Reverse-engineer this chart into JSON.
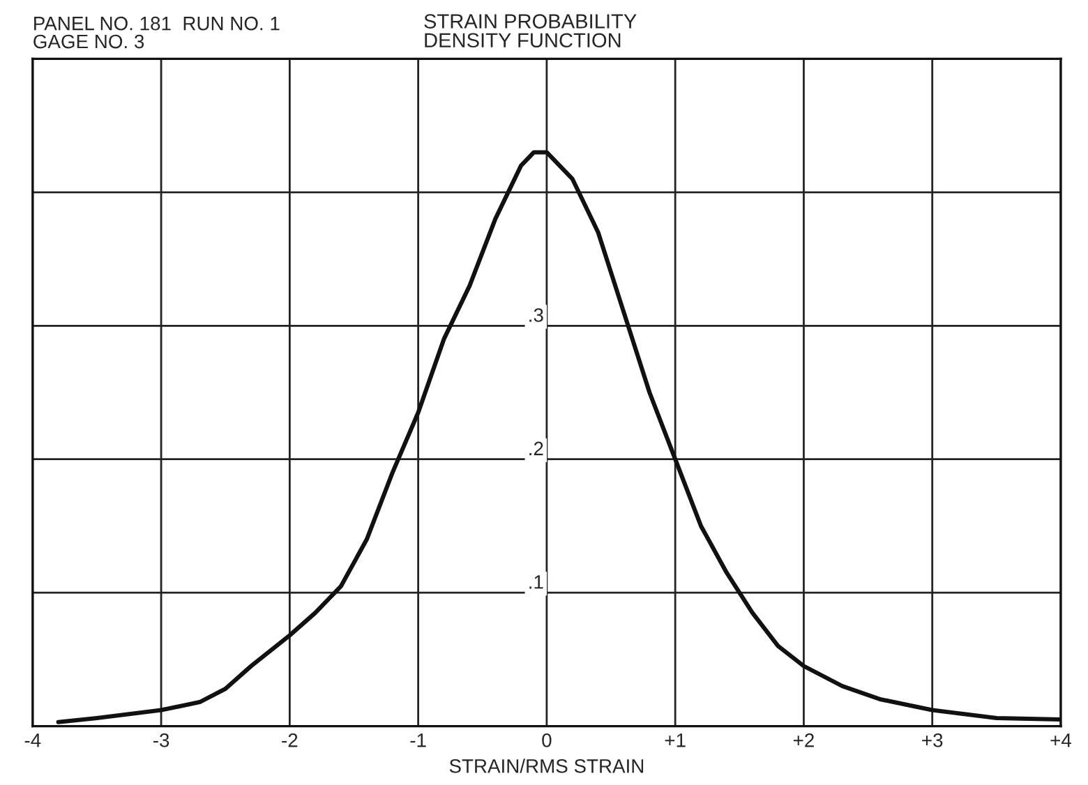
{
  "chart_data": {
    "type": "line",
    "title": "STRAIN PROBABILITY\nDENSITY FUNCTION",
    "xlabel": "STRAIN/RMS STRAIN",
    "annotations": [
      "PANEL NO. 181  RUN NO. 1\nGAGE NO. 3"
    ],
    "x": [
      -3.8,
      -3.5,
      -3.0,
      -2.7,
      -2.5,
      -2.3,
      -2.0,
      -1.8,
      -1.6,
      -1.4,
      -1.2,
      -1.0,
      -0.8,
      -0.6,
      -0.4,
      -0.2,
      -0.1,
      0.0,
      0.2,
      0.4,
      0.6,
      0.8,
      1.0,
      1.2,
      1.4,
      1.6,
      1.8,
      2.0,
      2.3,
      2.6,
      3.0,
      3.5,
      4.0
    ],
    "series": [
      {
        "color": "#111111",
        "values": [
          0.003,
          0.006,
          0.012,
          0.018,
          0.028,
          0.045,
          0.068,
          0.085,
          0.105,
          0.14,
          0.19,
          0.235,
          0.29,
          0.33,
          0.38,
          0.42,
          0.43,
          0.43,
          0.41,
          0.37,
          0.31,
          0.25,
          0.2,
          0.15,
          0.115,
          0.085,
          0.06,
          0.045,
          0.03,
          0.02,
          0.012,
          0.006,
          0.005
        ]
      }
    ],
    "xlim": [
      -4,
      4
    ],
    "ylim": [
      0,
      0.5
    ],
    "xticks": [
      -4,
      -3,
      -2,
      -1,
      0,
      {
        "value": 1,
        "label": "+1"
      },
      {
        "value": 2,
        "label": "+2"
      },
      {
        "value": 3,
        "label": "+3"
      },
      {
        "value": 4,
        "label": "+4"
      }
    ],
    "yticks": [
      {
        "value": 0,
        "label": null
      },
      {
        "value": 0.1,
        "label": ".1"
      },
      {
        "value": 0.2,
        "label": ".2"
      },
      {
        "value": 0.3,
        "label": ".3"
      },
      {
        "value": 0.4,
        "label": null
      },
      {
        "value": 0.5,
        "label": null
      }
    ],
    "grid": true,
    "legend": false,
    "marker": "none",
    "line_style": "solid"
  }
}
